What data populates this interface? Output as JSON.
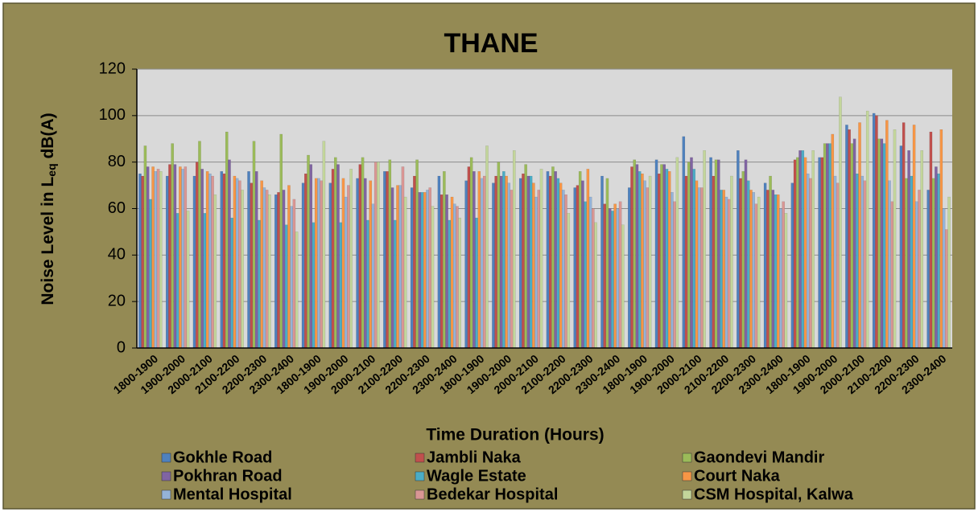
{
  "chart_data": {
    "type": "bar",
    "title": "THANE",
    "y_label": [
      "Noise Level in L",
      "eq",
      " dB(A)"
    ],
    "x_label": "Time Duration (Hours)",
    "categories": [
      "1800-1900",
      "1900-2000",
      "2000-2100",
      "2100-2200",
      "2200-2300",
      "2300-2400",
      "1800-1900",
      "1900-2000",
      "2000-2100",
      "2100-2200",
      "2200-2300",
      "2300-2400",
      "1800-1900",
      "1900-2000",
      "2000-2100",
      "2100-2200",
      "2200-2300",
      "2300-2400",
      "1800-1900",
      "1900-2000",
      "2000-2100",
      "2100-2200",
      "2200-2300",
      "2300-2400",
      "1800-1900",
      "1900-2000",
      "2000-2100",
      "2100-2200",
      "2200-2300",
      "2300-2400"
    ],
    "series": [
      {
        "name": "Gokhle Road",
        "color": "#4f81bd",
        "values": [
          75,
          74,
          74,
          76,
          76,
          66,
          71,
          71,
          73,
          76,
          69,
          74,
          72,
          71,
          73,
          76,
          69,
          74,
          69,
          81,
          91,
          82,
          85,
          71,
          71,
          82,
          96,
          101,
          87,
          68
        ]
      },
      {
        "name": "Jambli Naka",
        "color": "#c0504d",
        "values": [
          74,
          79,
          80,
          75,
          71,
          67,
          75,
          77,
          79,
          76,
          74,
          66,
          78,
          74,
          75,
          74,
          70,
          62,
          78,
          75,
          74,
          74,
          73,
          68,
          81,
          82,
          94,
          100,
          97,
          93
        ]
      },
      {
        "name": "Gaondevi Mandir",
        "color": "#9bbb59",
        "values": [
          87,
          88,
          89,
          93,
          89,
          92,
          83,
          82,
          82,
          81,
          81,
          76,
          82,
          80,
          79,
          78,
          76,
          73,
          81,
          79,
          80,
          81,
          76,
          74,
          82,
          88,
          88,
          90,
          73,
          73
        ]
      },
      {
        "name": "Pokhran Road",
        "color": "#8064a2",
        "values": [
          78,
          79,
          77,
          81,
          76,
          68,
          79,
          79,
          73,
          69,
          67,
          66,
          76,
          74,
          74,
          76,
          72,
          60,
          79,
          79,
          82,
          81,
          81,
          68,
          85,
          88,
          90,
          90,
          85,
          78
        ]
      },
      {
        "name": "Wagle Estate",
        "color": "#4bacc6",
        "values": [
          64,
          58,
          58,
          56,
          55,
          53,
          54,
          54,
          55,
          55,
          67,
          55,
          56,
          76,
          74,
          73,
          63,
          59,
          76,
          77,
          77,
          68,
          72,
          66,
          85,
          88,
          75,
          88,
          74,
          75
        ]
      },
      {
        "name": "Court Naka",
        "color": "#f79646",
        "values": [
          78,
          78,
          76,
          74,
          72,
          70,
          73,
          73,
          72,
          70,
          67,
          65,
          76,
          74,
          71,
          71,
          77,
          62,
          75,
          76,
          72,
          68,
          68,
          66,
          82,
          92,
          97,
          98,
          96,
          94
        ]
      },
      {
        "name": "Mental Hospital",
        "color": "#95b3d7",
        "values": [
          76,
          77,
          75,
          73,
          69,
          61,
          73,
          65,
          62,
          70,
          68,
          62,
          73,
          71,
          65,
          68,
          65,
          60,
          72,
          67,
          69,
          65,
          67,
          60,
          75,
          74,
          74,
          72,
          63,
          60
        ]
      },
      {
        "name": "Bedekar Hospital",
        "color": "#d99694",
        "values": [
          77,
          78,
          74,
          72,
          68,
          64,
          72,
          70,
          80,
          78,
          69,
          61,
          74,
          68,
          68,
          66,
          60,
          63,
          69,
          63,
          69,
          64,
          62,
          63,
          73,
          71,
          72,
          63,
          68,
          51
        ]
      },
      {
        "name": "CSM Hospital, Kalwa",
        "color": "#c3d69b",
        "values": [
          76,
          59,
          66,
          68,
          66,
          50,
          89,
          77,
          80,
          65,
          61,
          56,
          87,
          85,
          77,
          58,
          54,
          53,
          74,
          82,
          85,
          74,
          65,
          58,
          85,
          108,
          102,
          94,
          85,
          65
        ]
      }
    ],
    "ylim": [
      0,
      120
    ],
    "yticks": [
      0,
      20,
      40,
      60,
      80,
      100,
      120
    ],
    "grid": true,
    "legend": "bottom"
  }
}
